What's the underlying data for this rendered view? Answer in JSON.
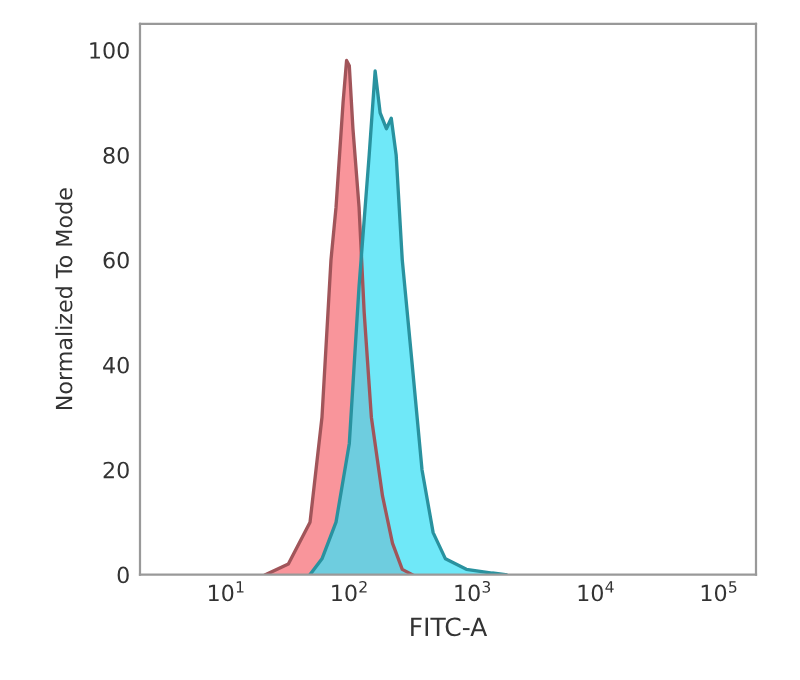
{
  "chart_data": {
    "type": "area",
    "xlabel": "FITC-A",
    "ylabel": "Normalized To Mode",
    "log": "x",
    "xlim": [
      2,
      200000
    ],
    "ylim": [
      0,
      105
    ],
    "xticks": [
      {
        "value": 10,
        "label": "10$^{1}$"
      },
      {
        "value": 100,
        "label": "10$^{2}$"
      },
      {
        "value": 1000,
        "label": "10$^{3}$"
      },
      {
        "value": 10000,
        "label": "10$^{4}$"
      },
      {
        "value": 100000,
        "label": "10$^{5}$"
      }
    ],
    "yticks": [
      0,
      20,
      40,
      60,
      80,
      100
    ],
    "grid": false,
    "series": [
      {
        "color": "#f8838a",
        "x": [
          21,
          32,
          48,
          60,
          71,
          78,
          89,
          95,
          100,
          107,
          120,
          132,
          151,
          186,
          224,
          269,
          324
        ],
        "values": [
          0,
          2,
          10,
          30,
          60,
          70,
          90,
          98,
          97,
          85,
          70,
          50,
          30,
          15,
          6,
          1,
          0
        ]
      },
      {
        "color": "#3fe0f5",
        "x": [
          48,
          60,
          78,
          100,
          120,
          145,
          162,
          178,
          200,
          219,
          240,
          269,
          324,
          389,
          479,
          603,
          891,
          1445,
          1862
        ],
        "values": [
          0,
          3,
          10,
          25,
          55,
          80,
          96,
          88,
          85,
          87,
          80,
          60,
          40,
          20,
          8,
          3,
          1,
          0.3,
          0
        ]
      }
    ]
  }
}
